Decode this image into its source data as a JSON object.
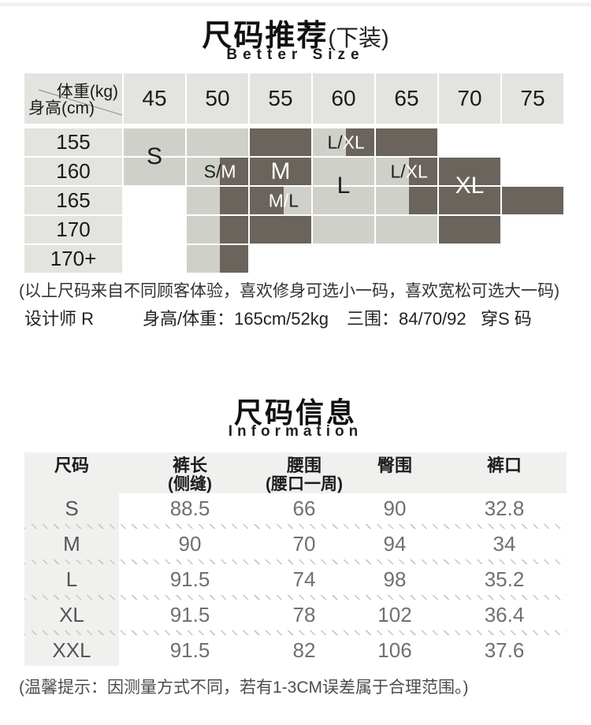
{
  "colors": {
    "dark_cell": "#6a645c",
    "light_cell": "#d0d0ca",
    "header_cell": "#e3e3df",
    "table_band": "#f0f0ee",
    "tick": "#c6c6c6",
    "text_dark": "#1d1d1d",
    "text_light": "#ffffff"
  },
  "recommendation": {
    "title": "尺码推荐",
    "title_suffix": "(下装)",
    "subtitle": "Better Size",
    "corner_top": "体重(kg)",
    "corner_bottom": "身高(cm)",
    "weights": [
      "45",
      "50",
      "55",
      "60",
      "65",
      "70",
      "75"
    ],
    "heights": [
      "155",
      "160",
      "165",
      "170",
      "170+"
    ],
    "cells": [
      [
        {
          "state": "light",
          "span": 2,
          "big": true,
          "label": [
            {
              "text": "S",
              "tone": "dark"
            }
          ]
        },
        {
          "state": "light"
        },
        {
          "state": "dark"
        },
        {
          "state": "split",
          "label": [
            {
              "text": "L/",
              "tone": "dark"
            },
            {
              "text": "XL",
              "tone": "light"
            }
          ]
        },
        {
          "state": "dark"
        },
        {
          "state": "empty"
        },
        {
          "state": "empty"
        }
      ],
      [
        null,
        {
          "state": "split",
          "label": [
            {
              "text": "S/",
              "tone": "dark"
            },
            {
              "text": "M",
              "tone": "light"
            }
          ]
        },
        {
          "state": "dark",
          "big": true,
          "label": [
            {
              "text": "M",
              "tone": "light"
            }
          ]
        },
        {
          "state": "light",
          "span": 2,
          "big": true,
          "label": [
            {
              "text": "L",
              "tone": "dark"
            }
          ]
        },
        {
          "state": "split",
          "label": [
            {
              "text": "L/",
              "tone": "dark"
            },
            {
              "text": "XL",
              "tone": "light"
            }
          ]
        },
        {
          "state": "dark",
          "span": 2,
          "big": true,
          "label": [
            {
              "text": "XL",
              "tone": "light"
            }
          ]
        },
        {
          "state": "empty"
        }
      ],
      [
        {
          "state": "empty"
        },
        {
          "state": "split"
        },
        {
          "state": "split-reverse",
          "label": [
            {
              "text": "M/",
              "tone": "light"
            },
            {
              "text": "L",
              "tone": "dark"
            }
          ]
        },
        null,
        {
          "state": "split"
        },
        null,
        {
          "state": "dark"
        }
      ],
      [
        {
          "state": "empty"
        },
        {
          "state": "split"
        },
        {
          "state": "dark"
        },
        {
          "state": "light"
        },
        {
          "state": "light"
        },
        {
          "state": "dark"
        },
        {
          "state": "empty"
        }
      ],
      [
        {
          "state": "empty"
        },
        {
          "state": "split"
        },
        {
          "state": "empty"
        },
        {
          "state": "empty"
        },
        {
          "state": "empty"
        },
        {
          "state": "empty"
        },
        {
          "state": "empty"
        }
      ]
    ],
    "note": "(以上尺码来自不同顾客体验，喜欢修身可选小一码，喜欢宽松可选大一码)",
    "designer": {
      "label": "设计师 R",
      "height_weight": "身高/体重：165cm/52kg",
      "measurements": "三围：84/70/92",
      "wears": "穿S 码"
    }
  },
  "info": {
    "title": "尺码信息",
    "subtitle": "Information",
    "columns": [
      {
        "label": "尺码",
        "sub": ""
      },
      {
        "label": "裤长",
        "sub": "(侧缝)"
      },
      {
        "label": "腰围",
        "sub": "(腰口一周)"
      },
      {
        "label": "臀围",
        "sub": ""
      },
      {
        "label": "裤口",
        "sub": ""
      }
    ],
    "rows": [
      {
        "size": "S",
        "values": [
          "88.5",
          "66",
          "90",
          "32.8"
        ]
      },
      {
        "size": "M",
        "values": [
          "90",
          "70",
          "94",
          "34"
        ]
      },
      {
        "size": "L",
        "values": [
          "91.5",
          "74",
          "98",
          "35.2"
        ]
      },
      {
        "size": "XL",
        "values": [
          "91.5",
          "78",
          "102",
          "36.4"
        ]
      },
      {
        "size": "XXL",
        "values": [
          "91.5",
          "82",
          "106",
          "37.6"
        ]
      }
    ],
    "footnote": "(温馨提示：因测量方式不同，若有1-3CM误差属于合理范围。)"
  }
}
